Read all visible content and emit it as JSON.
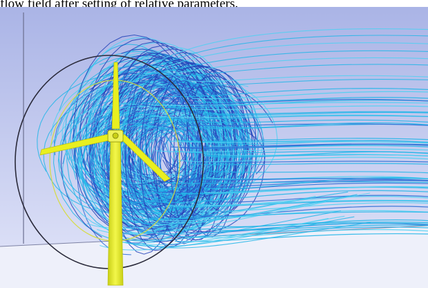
{
  "caption": {
    "text": "flow field after setting of relative parameters."
  },
  "figure": {
    "subject": "wind-turbine-streamline-visualization",
    "colors": {
      "background_top": "#aab4e6",
      "background_bottom": "#e3e6f9",
      "floor": "#eef0fa",
      "turbine": "#e9ef1f",
      "turbine_shadow": "#b9bf12",
      "rotor_ring": "#2a2a3a",
      "wake_ring": "#d6dc3a",
      "streamline_cyan": "#25b6e8",
      "streamline_sky": "#4fd0f2",
      "streamline_blue": "#2f6fd6",
      "streamline_navy": "#2343b8"
    }
  }
}
